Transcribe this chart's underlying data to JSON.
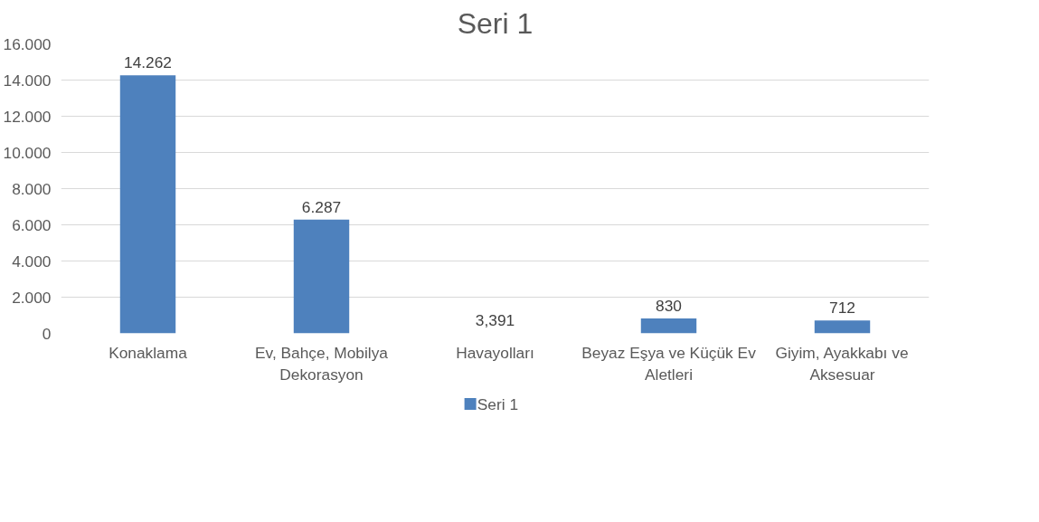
{
  "chart_data": {
    "type": "bar",
    "title": "Seri 1",
    "categories": [
      "Konaklama",
      "Ev, Bahçe, Mobilya Dekorasyon",
      "Havayolları",
      "Beyaz Eşya ve Küçük Ev Aletleri",
      "Giyim, Ayakkabı ve Aksesuar"
    ],
    "series": [
      {
        "name": "Seri 1",
        "color": "#4e81bd",
        "values": [
          14262,
          6287,
          3.391,
          830,
          712
        ],
        "value_labels": [
          "14.262",
          "6.287",
          "3,391",
          "830",
          "712"
        ]
      }
    ],
    "ylim": [
      0,
      16000
    ],
    "yticks": [
      {
        "value": 0,
        "label": "0"
      },
      {
        "value": 2000,
        "label": "2.000"
      },
      {
        "value": 4000,
        "label": "4.000"
      },
      {
        "value": 6000,
        "label": "6.000"
      },
      {
        "value": 8000,
        "label": "8.000"
      },
      {
        "value": 10000,
        "label": "10.000"
      },
      {
        "value": 12000,
        "label": "12.000"
      },
      {
        "value": 14000,
        "label": "14.000"
      },
      {
        "value": 16000,
        "label": "16.000"
      }
    ],
    "grid": "y",
    "legend": "bottom"
  }
}
